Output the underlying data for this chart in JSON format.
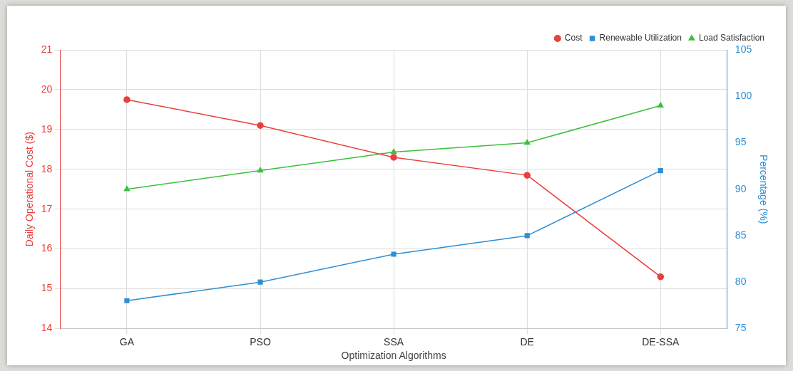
{
  "chart_data": {
    "type": "line",
    "xlabel": "Optimization Algorithms",
    "ylabel": "Daily Operational Cost ($)",
    "y2label": "Percentage (%)",
    "categories": [
      "GA",
      "PSO",
      "SSA",
      "DE",
      "DE-SSA"
    ],
    "series": [
      {
        "name": "Cost",
        "color": "#e8403c",
        "values": [
          19.75,
          19.1,
          18.3,
          17.85,
          15.3
        ],
        "marker": "circle"
      },
      {
        "name": "Renewable Utilization",
        "color": "#2e8fd4",
        "values": [
          78,
          80,
          83,
          85,
          92
        ],
        "axis": "y2",
        "marker": "square"
      },
      {
        "name": "Load Satisfaction",
        "color": "#3cbf3c",
        "values": [
          90,
          92,
          94,
          95,
          99
        ],
        "axis": "y2",
        "marker": "triangle"
      }
    ],
    "ylim": [
      14,
      21
    ],
    "yticks": [
      14,
      15,
      16,
      17,
      18,
      19,
      20,
      21
    ],
    "y2lim": [
      75,
      105
    ],
    "y2ticks": [
      75,
      80,
      85,
      90,
      95,
      100,
      105
    ],
    "grid": true,
    "legend": "top right",
    "line_style": "solid"
  }
}
